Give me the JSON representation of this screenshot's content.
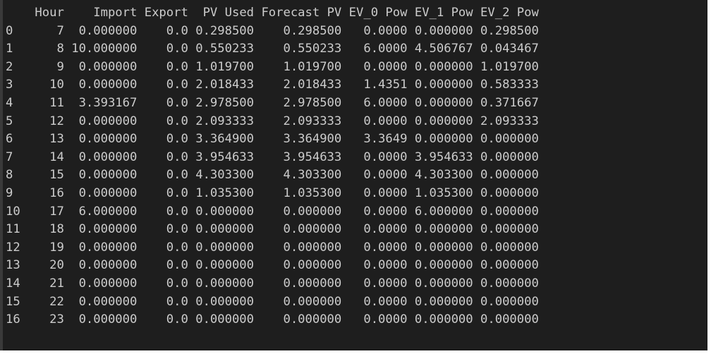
{
  "table": {
    "columns": [
      "",
      "Hour",
      "Import",
      "Export",
      "PV Used",
      "Forecast PV",
      "EV_0 Pow",
      "EV_1 Pow",
      "EV_2 Pow"
    ],
    "rows": [
      [
        "0",
        "7",
        "0.000000",
        "0.0",
        "0.298500",
        "0.298500",
        "0.0000",
        "0.000000",
        "0.298500"
      ],
      [
        "1",
        "8",
        "10.000000",
        "0.0",
        "0.550233",
        "0.550233",
        "6.0000",
        "4.506767",
        "0.043467"
      ],
      [
        "2",
        "9",
        "0.000000",
        "0.0",
        "1.019700",
        "1.019700",
        "0.0000",
        "0.000000",
        "1.019700"
      ],
      [
        "3",
        "10",
        "0.000000",
        "0.0",
        "2.018433",
        "2.018433",
        "1.4351",
        "0.000000",
        "0.583333"
      ],
      [
        "4",
        "11",
        "3.393167",
        "0.0",
        "2.978500",
        "2.978500",
        "6.0000",
        "0.000000",
        "0.371667"
      ],
      [
        "5",
        "12",
        "0.000000",
        "0.0",
        "2.093333",
        "2.093333",
        "0.0000",
        "0.000000",
        "2.093333"
      ],
      [
        "6",
        "13",
        "0.000000",
        "0.0",
        "3.364900",
        "3.364900",
        "3.3649",
        "0.000000",
        "0.000000"
      ],
      [
        "7",
        "14",
        "0.000000",
        "0.0",
        "3.954633",
        "3.954633",
        "0.0000",
        "3.954633",
        "0.000000"
      ],
      [
        "8",
        "15",
        "0.000000",
        "0.0",
        "4.303300",
        "4.303300",
        "0.0000",
        "4.303300",
        "0.000000"
      ],
      [
        "9",
        "16",
        "0.000000",
        "0.0",
        "1.035300",
        "1.035300",
        "0.0000",
        "1.035300",
        "0.000000"
      ],
      [
        "10",
        "17",
        "6.000000",
        "0.0",
        "0.000000",
        "0.000000",
        "0.0000",
        "6.000000",
        "0.000000"
      ],
      [
        "11",
        "18",
        "0.000000",
        "0.0",
        "0.000000",
        "0.000000",
        "0.0000",
        "0.000000",
        "0.000000"
      ],
      [
        "12",
        "19",
        "0.000000",
        "0.0",
        "0.000000",
        "0.000000",
        "0.0000",
        "0.000000",
        "0.000000"
      ],
      [
        "13",
        "20",
        "0.000000",
        "0.0",
        "0.000000",
        "0.000000",
        "0.0000",
        "0.000000",
        "0.000000"
      ],
      [
        "14",
        "21",
        "0.000000",
        "0.0",
        "0.000000",
        "0.000000",
        "0.0000",
        "0.000000",
        "0.000000"
      ],
      [
        "15",
        "22",
        "0.000000",
        "0.0",
        "0.000000",
        "0.000000",
        "0.0000",
        "0.000000",
        "0.000000"
      ],
      [
        "16",
        "23",
        "0.000000",
        "0.0",
        "0.000000",
        "0.000000",
        "0.0000",
        "0.000000",
        "0.000000"
      ]
    ]
  },
  "colors": {
    "background": "#1e1e1e",
    "text": "#cccccc",
    "gutter": "#3a3a3a",
    "page": "#ffffff"
  }
}
